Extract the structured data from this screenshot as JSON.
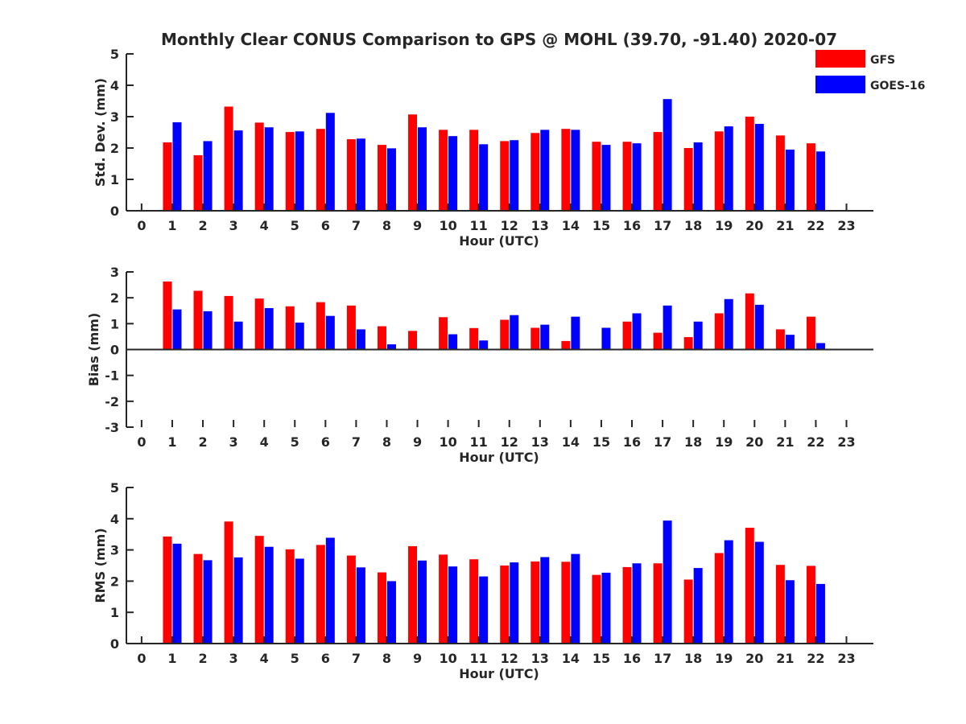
{
  "chart_data": [
    {
      "type": "bar",
      "title": "Monthly Clear CONUS Comparison to GPS @ MOHL (39.70, -91.40) 2020-07",
      "xlabel": "Hour (UTC)",
      "ylabel": "Std. Dev. (mm)",
      "ylim": [
        0,
        5
      ],
      "yticks": [
        0,
        1,
        2,
        3,
        4,
        5
      ],
      "categories": [
        "0",
        "1",
        "2",
        "3",
        "4",
        "5",
        "6",
        "7",
        "8",
        "9",
        "10",
        "11",
        "12",
        "13",
        "14",
        "15",
        "16",
        "17",
        "18",
        "19",
        "20",
        "21",
        "22",
        "23"
      ],
      "legend_position": "top-right",
      "series": [
        {
          "name": "GFS",
          "color": "#ff0000",
          "values": [
            null,
            2.18,
            1.77,
            3.32,
            2.81,
            2.51,
            2.61,
            2.28,
            2.1,
            3.07,
            2.58,
            2.58,
            2.22,
            2.48,
            2.61,
            2.2,
            2.2,
            2.51,
            2.0,
            2.53,
            3.0,
            2.4,
            2.15,
            null
          ]
        },
        {
          "name": "GOES-16",
          "color": "#0000ff",
          "values": [
            null,
            2.82,
            2.22,
            2.56,
            2.66,
            2.53,
            3.12,
            2.3,
            1.99,
            2.66,
            2.38,
            2.12,
            2.25,
            2.58,
            2.58,
            2.1,
            2.15,
            3.56,
            2.18,
            2.69,
            2.77,
            1.95,
            1.89,
            null
          ]
        }
      ]
    },
    {
      "type": "bar",
      "xlabel": "Hour (UTC)",
      "ylabel": "Bias (mm)",
      "ylim": [
        -3,
        3
      ],
      "yticks": [
        -3,
        -2,
        -1,
        0,
        1,
        2,
        3
      ],
      "categories": [
        "0",
        "1",
        "2",
        "3",
        "4",
        "5",
        "6",
        "7",
        "8",
        "9",
        "10",
        "11",
        "12",
        "13",
        "14",
        "15",
        "16",
        "17",
        "18",
        "19",
        "20",
        "21",
        "22",
        "23"
      ],
      "series": [
        {
          "name": "GFS",
          "color": "#ff0000",
          "values": [
            null,
            2.63,
            2.27,
            2.07,
            1.97,
            1.67,
            1.83,
            1.7,
            0.9,
            0.72,
            1.25,
            0.83,
            1.15,
            0.84,
            0.33,
            null,
            1.08,
            0.65,
            0.48,
            1.4,
            2.17,
            0.78,
            1.27,
            null
          ]
        },
        {
          "name": "GOES-16",
          "color": "#0000ff",
          "values": [
            null,
            1.55,
            1.48,
            1.08,
            1.6,
            1.04,
            1.3,
            0.78,
            0.2,
            -0.03,
            0.59,
            0.35,
            1.33,
            0.96,
            1.27,
            0.84,
            1.4,
            1.7,
            1.08,
            1.95,
            1.73,
            0.57,
            0.25,
            null
          ]
        }
      ]
    },
    {
      "type": "bar",
      "xlabel": "Hour (UTC)",
      "ylabel": "RMS (mm)",
      "ylim": [
        0,
        5
      ],
      "yticks": [
        0,
        1,
        2,
        3,
        4,
        5
      ],
      "categories": [
        "0",
        "1",
        "2",
        "3",
        "4",
        "5",
        "6",
        "7",
        "8",
        "9",
        "10",
        "11",
        "12",
        "13",
        "14",
        "15",
        "16",
        "17",
        "18",
        "19",
        "20",
        "21",
        "22",
        "23"
      ],
      "series": [
        {
          "name": "GFS",
          "color": "#ff0000",
          "values": [
            null,
            3.43,
            2.87,
            3.91,
            3.45,
            3.02,
            3.16,
            2.82,
            2.28,
            3.12,
            2.85,
            2.7,
            2.5,
            2.63,
            2.62,
            2.2,
            2.45,
            2.57,
            2.05,
            2.9,
            3.71,
            2.52,
            2.49,
            null
          ]
        },
        {
          "name": "GOES-16",
          "color": "#0000ff",
          "values": [
            null,
            3.2,
            2.67,
            2.76,
            3.1,
            2.72,
            3.39,
            2.44,
            2.0,
            2.66,
            2.47,
            2.15,
            2.6,
            2.77,
            2.87,
            2.27,
            2.57,
            3.94,
            2.42,
            3.31,
            3.26,
            2.03,
            1.91,
            null
          ]
        }
      ]
    }
  ]
}
